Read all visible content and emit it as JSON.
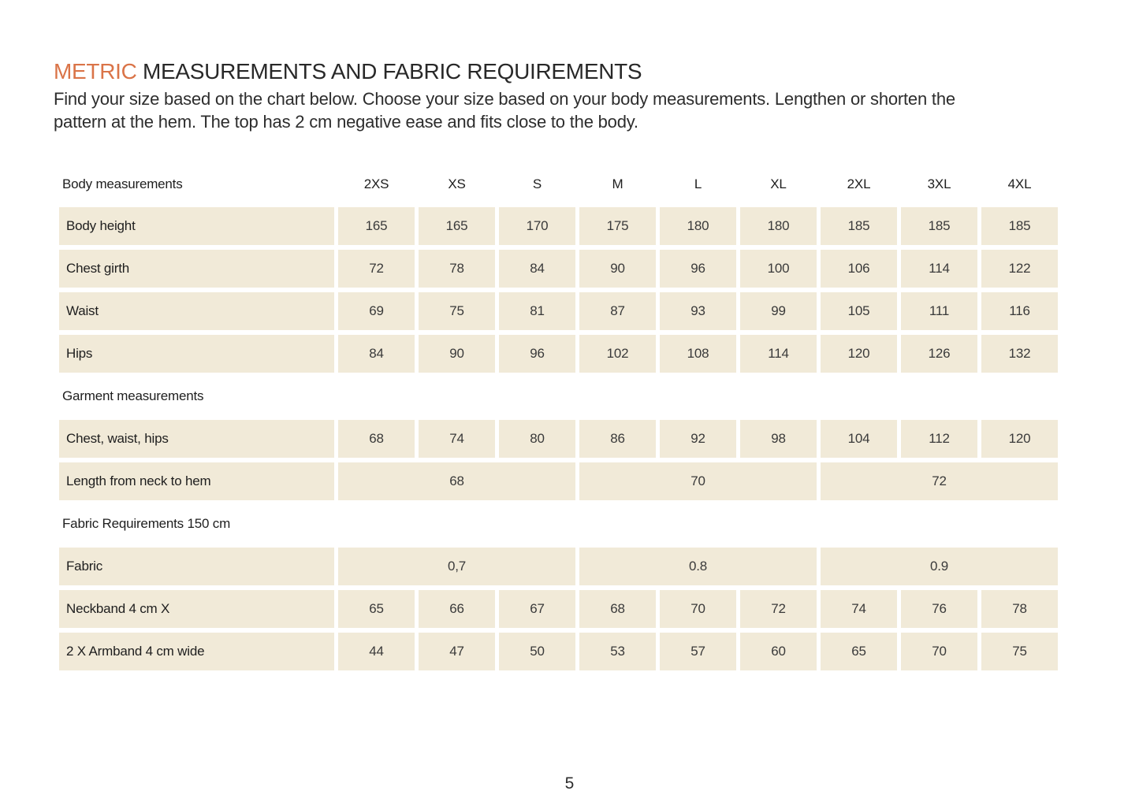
{
  "page": {
    "title_highlight": "METRIC",
    "title_rest": "MEASUREMENTS AND FABRIC REQUIREMENTS",
    "intro_line1": "Find your size based on the chart below. Choose your size based on your body measurements. Lengthen or shorten the",
    "intro_line2": "pattern at the hem. The top has 2 cm negative ease and fits close to the body.",
    "page_number": "5"
  },
  "colors": {
    "accent_orange": "#da7448",
    "cell_cream": "#f1ead8",
    "text_dark": "#1e1e1e",
    "background": "#ffffff"
  },
  "table": {
    "header": {
      "label": "Body measurements",
      "sizes": [
        "2XS",
        "XS",
        "S",
        "M",
        "L",
        "XL",
        "2XL",
        "3XL",
        "4XL"
      ]
    },
    "sections": [
      {
        "rows": [
          {
            "label": "Body height",
            "values": [
              "165",
              "165",
              "170",
              "175",
              "180",
              "180",
              "185",
              "185",
              "185"
            ]
          },
          {
            "label": "Chest girth",
            "values": [
              "72",
              "78",
              "84",
              "90",
              "96",
              "100",
              "106",
              "114",
              "122"
            ]
          },
          {
            "label": "Waist",
            "values": [
              "69",
              "75",
              "81",
              "87",
              "93",
              "99",
              "105",
              "111",
              "116"
            ]
          },
          {
            "label": "Hips",
            "values": [
              "84",
              "90",
              "96",
              "102",
              "108",
              "114",
              "120",
              "126",
              "132"
            ]
          }
        ]
      },
      {
        "heading": "Garment measurements",
        "rows": [
          {
            "label": "Chest, waist, hips",
            "values": [
              "68",
              "74",
              "80",
              "86",
              "92",
              "98",
              "104",
              "112",
              "120"
            ]
          },
          {
            "label": "Length from neck to hem",
            "merged": [
              {
                "text": "68",
                "span": 3
              },
              {
                "text": "70",
                "span": 3
              },
              {
                "text": "72",
                "span": 3
              }
            ]
          }
        ]
      },
      {
        "heading": "Fabric Requirements 150 cm",
        "rows": [
          {
            "label": "Fabric",
            "merged": [
              {
                "text": "0,7",
                "span": 3
              },
              {
                "text": "0.8",
                "span": 3
              },
              {
                "text": "0.9",
                "span": 3
              }
            ]
          },
          {
            "label": "Neckband 4 cm X",
            "values": [
              "65",
              "66",
              "67",
              "68",
              "70",
              "72",
              "74",
              "76",
              "78"
            ]
          },
          {
            "label": "2 X Armband 4 cm wide",
            "values": [
              "44",
              "47",
              "50",
              "53",
              "57",
              "60",
              "65",
              "70",
              "75"
            ]
          }
        ]
      }
    ]
  }
}
